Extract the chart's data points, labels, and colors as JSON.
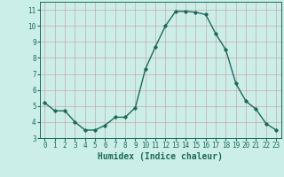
{
  "x": [
    0,
    1,
    2,
    3,
    4,
    5,
    6,
    7,
    8,
    9,
    10,
    11,
    12,
    13,
    14,
    15,
    16,
    17,
    18,
    19,
    20,
    21,
    22,
    23
  ],
  "y": [
    5.2,
    4.7,
    4.7,
    4.0,
    3.5,
    3.5,
    3.8,
    4.3,
    4.3,
    4.9,
    7.3,
    8.7,
    10.0,
    10.9,
    10.9,
    10.85,
    10.7,
    9.5,
    8.5,
    6.4,
    5.3,
    4.8,
    3.9,
    3.5
  ],
  "line_color": "#1a6b5a",
  "marker": "D",
  "marker_size": 1.8,
  "xlabel": "Humidex (Indice chaleur)",
  "xlim": [
    -0.5,
    23.5
  ],
  "ylim": [
    3,
    11.5
  ],
  "yticks": [
    3,
    4,
    5,
    6,
    7,
    8,
    9,
    10,
    11
  ],
  "xticks": [
    0,
    1,
    2,
    3,
    4,
    5,
    6,
    7,
    8,
    9,
    10,
    11,
    12,
    13,
    14,
    15,
    16,
    17,
    18,
    19,
    20,
    21,
    22,
    23
  ],
  "bg_color": "#cceee8",
  "grid_color": "#c8a8a8",
  "tick_label_color": "#1a6b5a",
  "xlabel_color": "#1a6b5a",
  "tick_fontsize": 5.5,
  "xlabel_fontsize": 7.0,
  "line_width": 1.0
}
